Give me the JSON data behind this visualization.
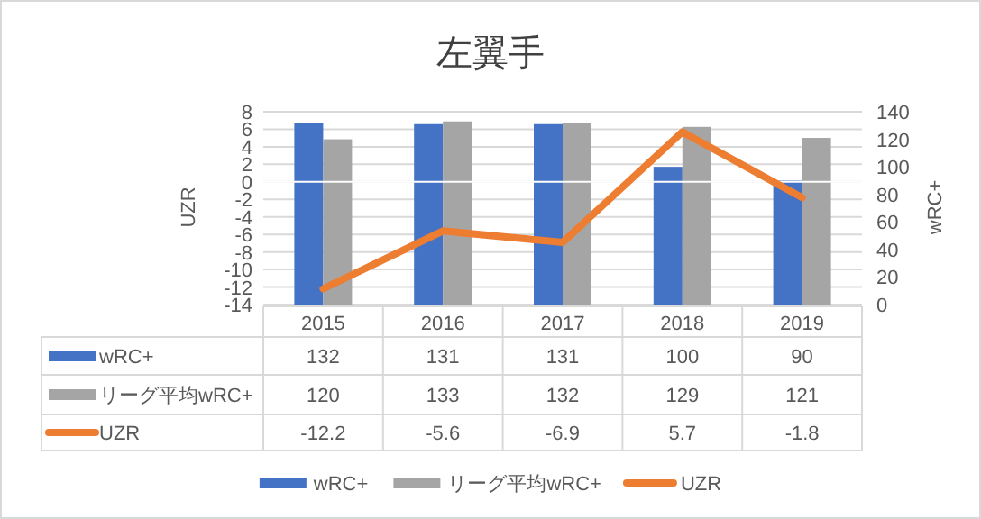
{
  "chart_data": {
    "type": "bar",
    "title": "左翼手",
    "categories": [
      "2015",
      "2016",
      "2017",
      "2018",
      "2019"
    ],
    "series": [
      {
        "name": "wRC+",
        "color": "#4472c4",
        "values": [
          132,
          131,
          131,
          100,
          90
        ],
        "axis": "y2"
      },
      {
        "name": "リーグ平均wRC+",
        "color": "#a5a5a5",
        "values": [
          120,
          133,
          132,
          129,
          121
        ],
        "axis": "y2"
      },
      {
        "name": "UZR",
        "type": "line",
        "color": "#ed7d31",
        "values": [
          -12.2,
          -5.6,
          -6.9,
          5.7,
          -1.8
        ]
      }
    ],
    "ylabel": "UZR",
    "y2label": "wRC+",
    "ylim": [
      -14,
      8
    ],
    "yticks": [
      -14,
      -12,
      -10,
      -8,
      -6,
      -4,
      -2,
      0,
      2,
      4,
      6,
      8
    ],
    "y2lim": [
      0,
      140
    ],
    "y2ticks": [
      0,
      20,
      40,
      60,
      80,
      100,
      120,
      140
    ],
    "grid": "y",
    "legend": "bottom",
    "data_labels": true
  }
}
